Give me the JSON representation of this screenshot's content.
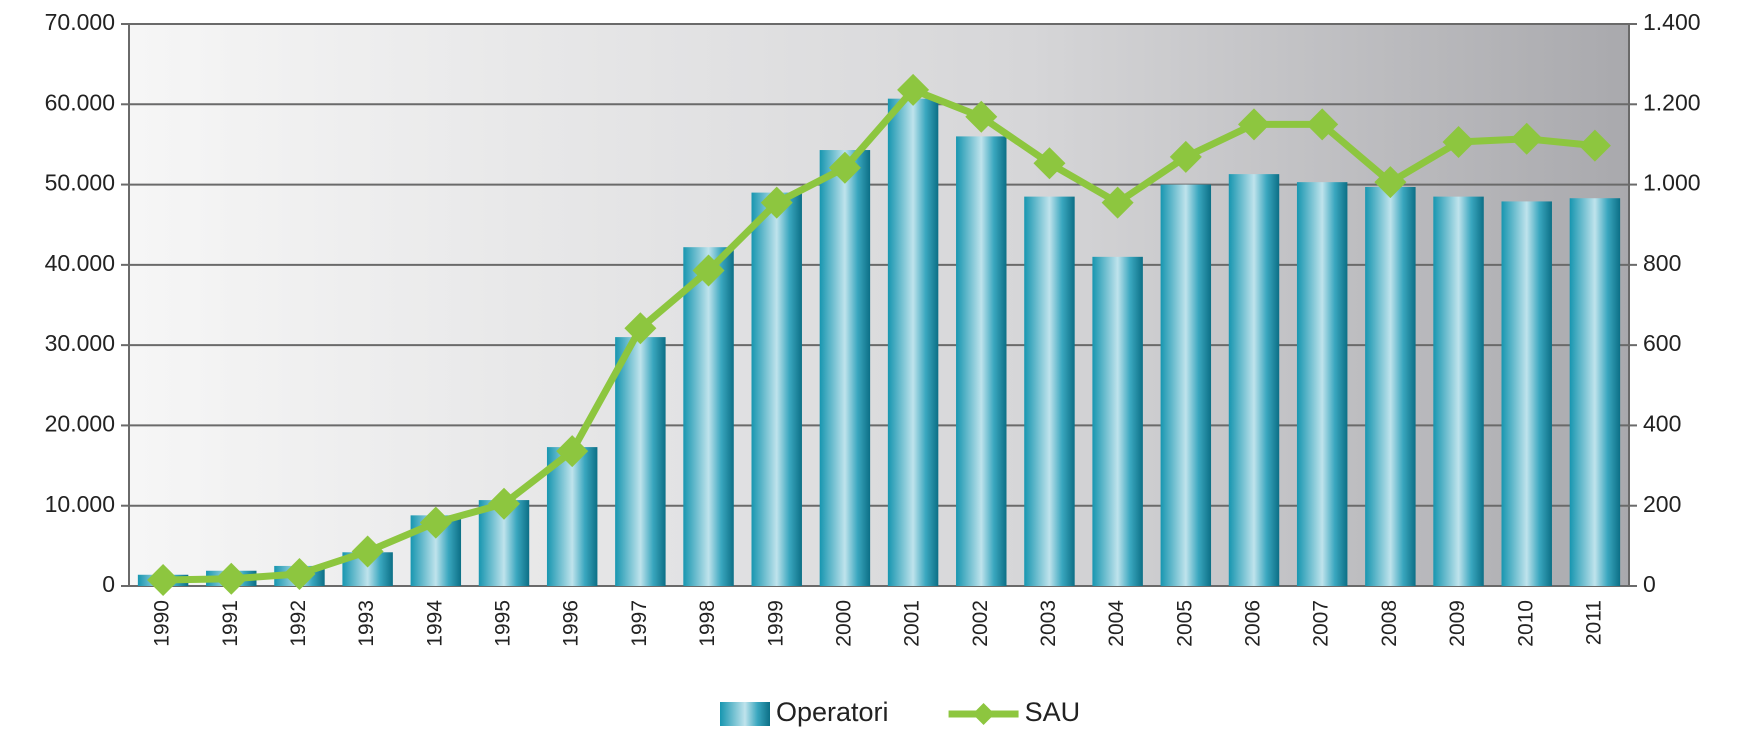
{
  "chart_data": {
    "type": "bar_line",
    "categories": [
      "1990",
      "1991",
      "1992",
      "1993",
      "1994",
      "1995",
      "1996",
      "1997",
      "1998",
      "1999",
      "2000",
      "2001",
      "2002",
      "2003",
      "2004",
      "2005",
      "2006",
      "2007",
      "2008",
      "2009",
      "2010",
      "2011"
    ],
    "series": [
      {
        "name": "Operatori",
        "color": "#1a9bb5",
        "type": "bar",
        "values": [
          1400,
          1900,
          2500,
          4200,
          8800,
          10700,
          17300,
          31000,
          42200,
          49000,
          54300,
          60700,
          56000,
          48500,
          41000,
          50000,
          51300,
          50300,
          49700,
          48500,
          47900,
          48300
        ]
      },
      {
        "name": "SAU",
        "color": "#8dc63f",
        "type": "line",
        "axis": "y2",
        "values": [
          15,
          18,
          30,
          86,
          158,
          205,
          336,
          642,
          786,
          955,
          1042,
          1236,
          1169,
          1053,
          955,
          1069,
          1150,
          1150,
          1006,
          1106,
          1114,
          1097
        ]
      }
    ],
    "ylim": [
      0,
      70000
    ],
    "yticks": [
      0,
      {
        "value": 10000,
        "label": "10.000"
      },
      {
        "value": 20000,
        "label": "20.000"
      },
      {
        "value": 30000,
        "label": "30.000"
      },
      {
        "value": 40000,
        "label": "40.000"
      },
      {
        "value": 50000,
        "label": "50.000"
      },
      {
        "value": 60000,
        "label": "60.000"
      },
      {
        "value": 70000,
        "label": "70.000"
      }
    ],
    "y2lim": [
      0,
      1400
    ],
    "y2ticks": [
      0,
      200,
      400,
      600,
      800,
      {
        "value": 1000,
        "label": "1.000"
      },
      {
        "value": 1200,
        "label": "1.200"
      },
      {
        "value": 1400,
        "label": "1.400"
      }
    ],
    "grid": true,
    "legend": "bottom"
  }
}
